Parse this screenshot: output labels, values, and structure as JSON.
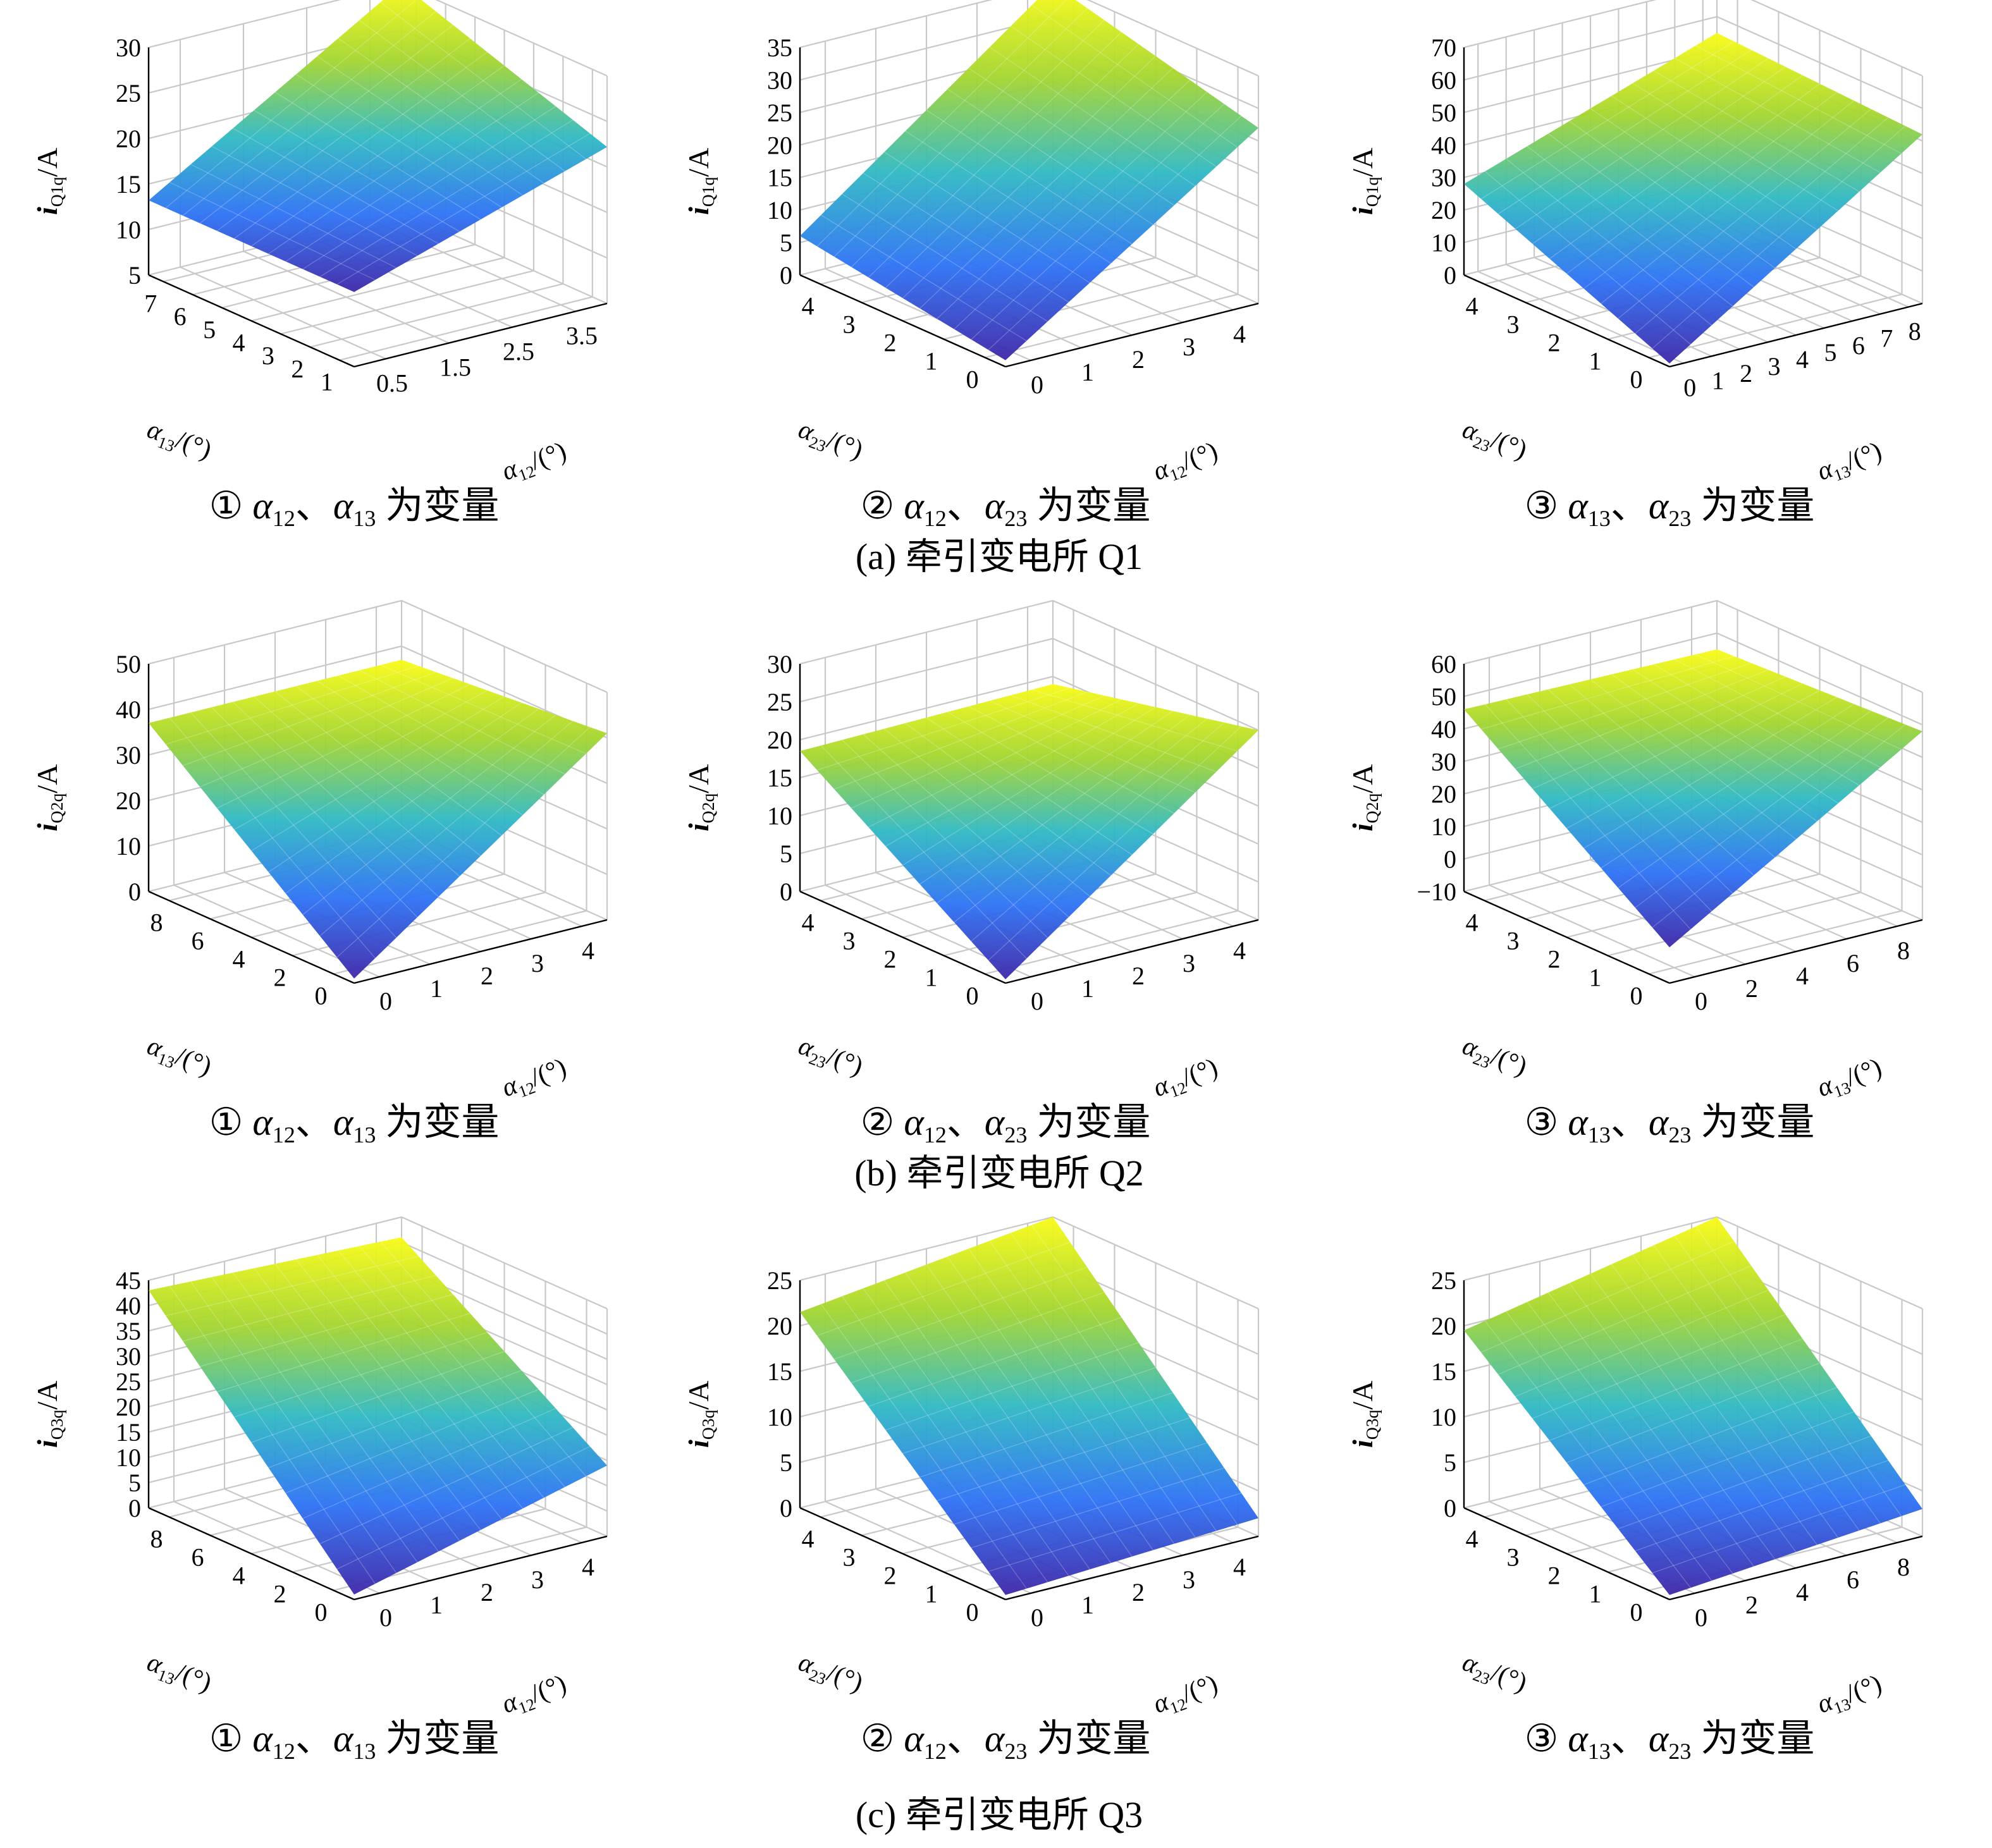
{
  "figure": {
    "captions": [
      {
        "text": "(a) 牵引变电所 Q1"
      },
      {
        "text": "(b) 牵引变电所 Q2"
      },
      {
        "text": "(c) 牵引变电所 Q3"
      }
    ]
  },
  "colors": {
    "gridline": "#c8c8c8",
    "surface_low": "#3e26a8",
    "surface_mid": "#2fb9c3",
    "surface_high": "#f9fb15",
    "text": "#000000"
  },
  "chart_data": [
    {
      "type": "surface",
      "panel": "①",
      "caption": "① α12、α13 为变量",
      "zlabel": "i_Q1q/A",
      "xlabel": "α12/(°)",
      "ylabel": "α13/(°)",
      "xlim": [
        0,
        4
      ],
      "ylim": [
        1,
        7.5
      ],
      "zlim": [
        0,
        32
      ],
      "xticks": [
        "0.5",
        "1.5",
        "2.5",
        "3.5"
      ],
      "yticks": [
        "1",
        "2",
        "3",
        "4",
        "5",
        "6",
        "7"
      ],
      "zticks": [
        "5",
        "10",
        "15",
        "20",
        "25",
        "30"
      ],
      "corners": {
        "x0y0": 10.5,
        "x1y0": 22,
        "x0y1": 10.5,
        "x1y1": 32
      }
    },
    {
      "type": "surface",
      "panel": "②",
      "caption": "② α12、α23 为变量",
      "zlabel": "i_Q1q/A",
      "xlabel": "α12/(°)",
      "ylabel": "α23/(°)",
      "xlim": [
        0,
        4
      ],
      "ylim": [
        0,
        4
      ],
      "zlim": [
        0,
        35
      ],
      "xticks": [
        "0",
        "1",
        "2",
        "3",
        "4"
      ],
      "yticks": [
        "0",
        "1",
        "2",
        "3",
        "4"
      ],
      "zticks": [
        "0",
        "5",
        "10",
        "15",
        "20",
        "25",
        "30",
        "35"
      ],
      "corners": {
        "x0y0": 1,
        "x1y0": 27,
        "x0y1": 6,
        "x1y1": 36
      }
    },
    {
      "type": "surface",
      "panel": "③",
      "caption": "③ α13、α23 为变量",
      "zlabel": "i_Q1q/A",
      "xlabel": "α13/(°)",
      "ylabel": "α23/(°)",
      "xlim": [
        0,
        8
      ],
      "ylim": [
        0,
        4
      ],
      "zlim": [
        0,
        70
      ],
      "xticks": [
        "0",
        "1",
        "2",
        "3",
        "4",
        "5",
        "6",
        "7",
        "8"
      ],
      "yticks": [
        "0",
        "1",
        "2",
        "3",
        "4"
      ],
      "zticks": [
        "0",
        "10",
        "20",
        "30",
        "40",
        "50",
        "60",
        "70"
      ],
      "corners": {
        "x0y0": 1,
        "x1y0": 52,
        "x0y1": 28,
        "x1y1": 55
      }
    },
    {
      "type": "surface",
      "panel": "①",
      "caption": "① α12、α13 为变量",
      "zlabel": "i_Q2q/A",
      "xlabel": "α12/(°)",
      "ylabel": "α13/(°)",
      "xlim": [
        0,
        4
      ],
      "ylim": [
        0,
        8
      ],
      "zlim": [
        0,
        50
      ],
      "xticks": [
        "0",
        "1",
        "2",
        "3",
        "4"
      ],
      "yticks": [
        "0",
        "2",
        "4",
        "6",
        "8"
      ],
      "zticks": [
        "0",
        "10",
        "20",
        "30",
        "40",
        "50"
      ],
      "corners": {
        "x0y0": 1,
        "x1y0": 41,
        "x0y1": 37,
        "x1y1": 37
      }
    },
    {
      "type": "surface",
      "panel": "②",
      "caption": "② α12、α23 为变量",
      "zlabel": "i_Q2q/A",
      "xlabel": "α12/(°)",
      "ylabel": "α23/(°)",
      "xlim": [
        0,
        4
      ],
      "ylim": [
        0,
        4
      ],
      "zlim": [
        0,
        30
      ],
      "xticks": [
        "0",
        "1",
        "2",
        "3",
        "4"
      ],
      "yticks": [
        "0",
        "1",
        "2",
        "3",
        "4"
      ],
      "zticks": [
        "0",
        "5",
        "10",
        "15",
        "20",
        "25",
        "30"
      ],
      "corners": {
        "x0y0": 0.5,
        "x1y0": 25,
        "x0y1": 18.5,
        "x1y1": 19
      }
    },
    {
      "type": "surface",
      "panel": "③",
      "caption": "③ α13、α23 为变量",
      "zlabel": "i_Q2q/A",
      "xlabel": "α13/(°)",
      "ylabel": "α23/(°)",
      "xlim": [
        0,
        8
      ],
      "ylim": [
        0,
        4
      ],
      "zlim": [
        -10,
        60
      ],
      "xticks": [
        "0",
        "2",
        "4",
        "6",
        "8"
      ],
      "yticks": [
        "0",
        "1",
        "2",
        "3",
        "4"
      ],
      "zticks": [
        "−10",
        "0",
        "10",
        "20",
        "30",
        "40",
        "50",
        "60"
      ],
      "corners": {
        "x0y0": 1,
        "x1y0": 48,
        "x0y1": 46,
        "x1y1": 45
      }
    },
    {
      "type": "surface",
      "panel": "①",
      "caption": "① α12、α13 为变量",
      "zlabel": "i_Q3q/A",
      "xlabel": "α12/(°)",
      "ylabel": "α13/(°)",
      "xlim": [
        0,
        4
      ],
      "ylim": [
        0,
        8
      ],
      "zlim": [
        0,
        45
      ],
      "xticks": [
        "0",
        "1",
        "2",
        "3",
        "4"
      ],
      "yticks": [
        "0",
        "2",
        "4",
        "6",
        "8"
      ],
      "zticks": [
        "0",
        "5",
        "10",
        "15",
        "20",
        "25",
        "30",
        "35",
        "40",
        "45"
      ],
      "corners": {
        "x0y0": 1,
        "x1y0": 14,
        "x0y1": 43,
        "x1y1": 41
      }
    },
    {
      "type": "surface",
      "panel": "②",
      "caption": "② α12、α23 为变量",
      "zlabel": "i_Q3q/A",
      "xlabel": "α12/(°)",
      "ylabel": "α23/(°)",
      "xlim": [
        0,
        4
      ],
      "ylim": [
        0,
        4
      ],
      "zlim": [
        0,
        25
      ],
      "xticks": [
        "0",
        "1",
        "2",
        "3",
        "4"
      ],
      "yticks": [
        "0",
        "1",
        "2",
        "3",
        "4"
      ],
      "zticks": [
        "0",
        "5",
        "10",
        "15",
        "20",
        "25"
      ],
      "corners": {
        "x0y0": 0.5,
        "x1y0": 2,
        "x0y1": 21.5,
        "x1y1": 26
      }
    },
    {
      "type": "surface",
      "panel": "③",
      "caption": "③ α13、α23 为变量",
      "zlabel": "i_Q3q/A",
      "xlabel": "α13/(°)",
      "ylabel": "α23/(°)",
      "xlim": [
        0,
        8
      ],
      "ylim": [
        0,
        4
      ],
      "zlim": [
        0,
        25
      ],
      "xticks": [
        "0",
        "2",
        "4",
        "6",
        "8"
      ],
      "yticks": [
        "0",
        "1",
        "2",
        "3",
        "4"
      ],
      "zticks": [
        "0",
        "5",
        "10",
        "15",
        "20",
        "25"
      ],
      "corners": {
        "x0y0": 0.5,
        "x1y0": 3,
        "x0y1": 19.5,
        "x1y1": 26
      }
    }
  ]
}
